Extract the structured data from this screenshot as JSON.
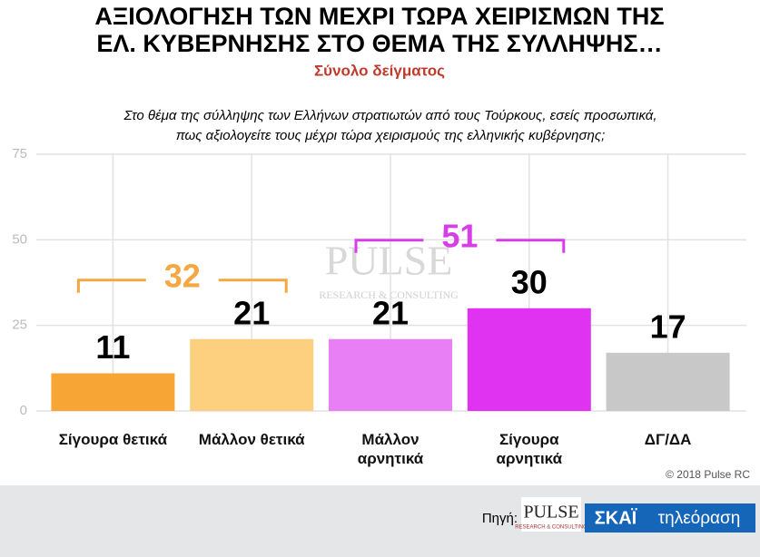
{
  "chart_data": {
    "type": "bar",
    "title": [
      "ΑΞΙΟΛΟΓΗΣΗ ΤΩΝ ΜΕΧΡΙ ΤΩΡΑ ΧΕΙΡΙΣΜΩΝ ΤΗΣ",
      "ΕΛ. ΚΥΒΕΡΝΗΣΗΣ ΣΤΟ ΘΕΜΑ ΤΗΣ ΣΥΛΛΗΨΗΣ…"
    ],
    "subtitle": "Σύνολο δείγματος",
    "question": [
      "Στο θέμα της σύλληψης των Ελλήνων στρατιωτών από τους Τούρκους, εσείς προσωπικά,",
      "πως αξιολογείτε τους μέχρι τώρα χειρισμούς της ελληνικής κυβέρνησης;"
    ],
    "categories": [
      "Σίγουρα θετικά",
      "Μάλλον θετικά",
      "Μάλλον αρνητικά",
      "Σίγουρα αρνητικά",
      "ΔΓ/ΔΑ"
    ],
    "values": [
      11,
      21,
      21,
      30,
      17
    ],
    "colors": [
      "#f7a535",
      "#fdd07f",
      "#e87ff5",
      "#e033f2",
      "#c8c8c8"
    ],
    "brackets": [
      {
        "value": 32,
        "color": "#f5a742"
      },
      {
        "value": 51,
        "color": "#d63ee6"
      }
    ],
    "ylim": [
      0,
      75
    ],
    "yticks": [
      0,
      25,
      50,
      75
    ],
    "grid": true,
    "watermark": "PULSE",
    "watermark_sub": "RESEARCH & CONSULTING",
    "copyright": "© 2018 Pulse RC"
  },
  "footer": {
    "source_label": "Πηγή:",
    "logo1": "PULSE",
    "logo1_sub": "RESEARCH & CONSULTING",
    "logo2": "ΣΚΑΪ",
    "logo2_sub": "τηλεόραση"
  }
}
